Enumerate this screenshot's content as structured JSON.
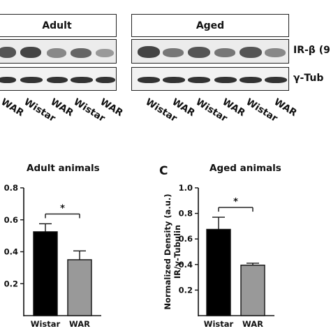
{
  "blot": {
    "groups": [
      "Adult",
      "Aged"
    ],
    "row_labels": [
      "IR-β (9",
      "γ-Tub"
    ],
    "lanes_adult": [
      "WAR",
      "Wistar",
      "WAR",
      "Wistar",
      "WAR"
    ],
    "lanes_aged": [
      "Wistar",
      "WAR",
      "Wistar",
      "WAR",
      "Wistar",
      "WAR"
    ]
  },
  "panel_c_letter": "C",
  "chart_data": [
    {
      "type": "bar",
      "title": "Adult animals",
      "categories": [
        "Wistar",
        "WAR"
      ],
      "values": [
        0.525,
        0.35
      ],
      "errors": [
        0.05,
        0.055
      ],
      "colors": [
        "#000000",
        "#999999"
      ],
      "ylim": [
        0,
        0.8
      ],
      "yticks": [
        "0.8",
        "0.6",
        "0.4",
        "0.2"
      ],
      "ylabel": "",
      "significance": "*"
    },
    {
      "type": "bar",
      "title": "Aged animals",
      "categories": [
        "Wistar",
        "WAR"
      ],
      "values": [
        0.675,
        0.395
      ],
      "errors": [
        0.095,
        0.015
      ],
      "colors": [
        "#000000",
        "#999999"
      ],
      "ylim": [
        0,
        1.0
      ],
      "yticks": [
        "1.0",
        "0.8",
        "0.6",
        "0.4",
        "0.2"
      ],
      "ylabel": "Normalized Density (a.u.)\nIR/γ-Tubulin",
      "significance": "*"
    }
  ]
}
